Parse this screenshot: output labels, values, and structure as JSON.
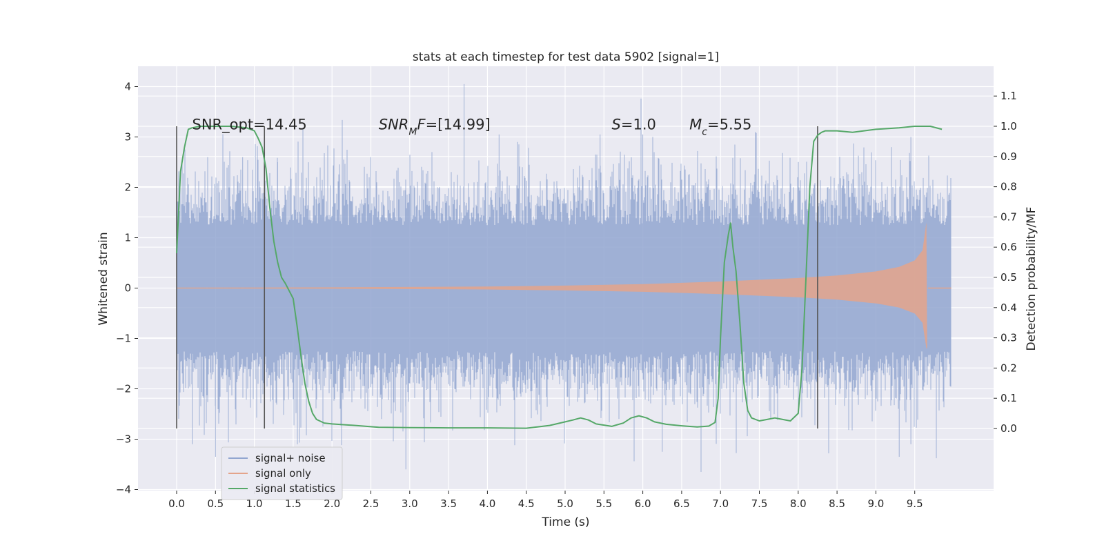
{
  "chart_data": {
    "type": "line",
    "title": "stats at each timestep for test data 5902 [signal=1]",
    "xlabel": "Time (s)",
    "ylabel": "Whitened strain",
    "y2label": "Detection probability/MF",
    "xlim": [
      -0.49,
      10.49
    ],
    "ylim": [
      -4.0,
      4.4
    ],
    "y2lim": [
      -0.195,
      1.24
    ],
    "xticks": [
      "0.0",
      "0.5",
      "1.0",
      "1.5",
      "2.0",
      "2.5",
      "3.0",
      "3.5",
      "4.0",
      "4.5",
      "5.0",
      "5.5",
      "6.0",
      "6.5",
      "7.0",
      "7.5",
      "8.0",
      "8.5",
      "9.0",
      "9.5"
    ],
    "yticks": [
      "4",
      "3",
      "2",
      "1",
      "0",
      "−1",
      "−2",
      "−3",
      "−4"
    ],
    "y2ticks": [
      "1.1",
      "1.0",
      "0.9",
      "0.8",
      "0.7",
      "0.6",
      "0.5",
      "0.4",
      "0.3",
      "0.2",
      "0.1",
      "0.0"
    ],
    "grid": true,
    "legend_position": "lower-left",
    "series": [
      {
        "name": "signal+ noise",
        "axis": "left",
        "color": "#92a6d0",
        "description_values": {
          "x_range": [
            0.0,
            9.97
          ],
          "typical_amplitude": [
            -1.4,
            1.4
          ],
          "max": 4.05,
          "max_at": 3.7,
          "min": -3.6,
          "min_at": 2.95
        }
      },
      {
        "name": "signal only",
        "axis": "left",
        "color": "#e4a48b",
        "envelope": [
          {
            "x": 0.0,
            "amp": 0.01
          },
          {
            "x": 2.0,
            "amp": 0.015
          },
          {
            "x": 4.0,
            "amp": 0.03
          },
          {
            "x": 5.0,
            "amp": 0.05
          },
          {
            "x": 6.0,
            "amp": 0.08
          },
          {
            "x": 7.0,
            "amp": 0.13
          },
          {
            "x": 8.0,
            "amp": 0.2
          },
          {
            "x": 8.5,
            "amp": 0.25
          },
          {
            "x": 9.0,
            "amp": 0.33
          },
          {
            "x": 9.3,
            "amp": 0.42
          },
          {
            "x": 9.5,
            "amp": 0.55
          },
          {
            "x": 9.6,
            "amp": 0.75
          },
          {
            "x": 9.65,
            "amp": 1.3
          }
        ]
      },
      {
        "name": "signal statistics",
        "axis": "right",
        "color": "#55a868",
        "x": [
          0.0,
          0.05,
          0.1,
          0.15,
          0.2,
          0.3,
          0.5,
          0.7,
          0.9,
          1.0,
          1.05,
          1.1,
          1.15,
          1.2,
          1.25,
          1.3,
          1.35,
          1.4,
          1.5,
          1.55,
          1.6,
          1.65,
          1.7,
          1.75,
          1.8,
          1.9,
          2.0,
          2.3,
          2.6,
          3.0,
          3.5,
          4.0,
          4.5,
          4.8,
          5.0,
          5.1,
          5.2,
          5.3,
          5.4,
          5.6,
          5.75,
          5.85,
          5.95,
          6.05,
          6.15,
          6.3,
          6.5,
          6.7,
          6.85,
          6.93,
          6.97,
          7.0,
          7.05,
          7.1,
          7.13,
          7.16,
          7.2,
          7.25,
          7.3,
          7.35,
          7.4,
          7.5,
          7.6,
          7.7,
          7.8,
          7.9,
          8.0,
          8.05,
          8.1,
          8.15,
          8.2,
          8.25,
          8.3,
          8.35,
          8.4,
          8.5,
          8.7,
          9.0,
          9.3,
          9.5,
          9.7,
          9.85
        ],
        "values": [
          0.58,
          0.85,
          0.93,
          0.99,
          0.995,
          1.0,
          1.0,
          1.0,
          0.995,
          0.985,
          0.96,
          0.93,
          0.86,
          0.73,
          0.62,
          0.55,
          0.5,
          0.48,
          0.43,
          0.34,
          0.24,
          0.15,
          0.09,
          0.05,
          0.03,
          0.018,
          0.015,
          0.01,
          0.004,
          0.003,
          0.002,
          0.002,
          0.001,
          0.01,
          0.022,
          0.028,
          0.035,
          0.028,
          0.015,
          0.007,
          0.018,
          0.035,
          0.042,
          0.035,
          0.022,
          0.014,
          0.009,
          0.005,
          0.008,
          0.02,
          0.1,
          0.3,
          0.55,
          0.64,
          0.68,
          0.6,
          0.52,
          0.35,
          0.15,
          0.06,
          0.035,
          0.025,
          0.03,
          0.035,
          0.03,
          0.025,
          0.05,
          0.2,
          0.5,
          0.8,
          0.95,
          0.97,
          0.98,
          0.985,
          0.985,
          0.985,
          0.98,
          0.99,
          0.995,
          1.0,
          1.0,
          0.99
        ]
      }
    ],
    "vlines": [
      0.0,
      1.13,
      8.25
    ],
    "vline_range_y2": [
      0.0,
      1.0
    ],
    "annotations": [
      {
        "text": "SNR_opt=14.45",
        "x": 0.2,
        "y": 3.15
      },
      {
        "text": "SNR_MF=[14.99]",
        "x": 2.6,
        "y": 3.15
      },
      {
        "text": "S=1.0",
        "x": 5.6,
        "y": 3.15
      },
      {
        "text": "M_c=5.55",
        "x": 6.6,
        "y": 3.15
      }
    ]
  }
}
